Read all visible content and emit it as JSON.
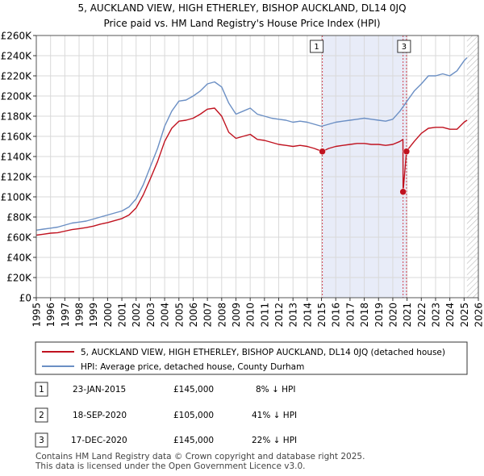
{
  "chart_data": {
    "type": "line",
    "title": "5, AUCKLAND VIEW, HIGH ETHERLEY, BISHOP AUCKLAND, DL14 0JQ",
    "subtitle": "Price paid vs. HM Land Registry's House Price Index (HPI)",
    "xlim": [
      1995,
      2026
    ],
    "ylim": [
      0,
      260000
    ],
    "x_ticks": [
      "1995",
      "1996",
      "1997",
      "1998",
      "1999",
      "2000",
      "2001",
      "2002",
      "2003",
      "2004",
      "2005",
      "2006",
      "2007",
      "2008",
      "2009",
      "2010",
      "2011",
      "2012",
      "2013",
      "2014",
      "2015",
      "2016",
      "2017",
      "2018",
      "2019",
      "2020",
      "2021",
      "2022",
      "2023",
      "2024",
      "2025",
      "2026"
    ],
    "y_ticks": [
      {
        "value": 0,
        "label": "£0"
      },
      {
        "value": 20000,
        "label": "£20K"
      },
      {
        "value": 40000,
        "label": "£40K"
      },
      {
        "value": 60000,
        "label": "£60K"
      },
      {
        "value": 80000,
        "label": "£80K"
      },
      {
        "value": 100000,
        "label": "£100K"
      },
      {
        "value": 120000,
        "label": "£120K"
      },
      {
        "value": 140000,
        "label": "£140K"
      },
      {
        "value": 160000,
        "label": "£160K"
      },
      {
        "value": 180000,
        "label": "£180K"
      },
      {
        "value": 200000,
        "label": "£200K"
      },
      {
        "value": 220000,
        "label": "£220K"
      },
      {
        "value": 240000,
        "label": "£240K"
      },
      {
        "value": 260000,
        "label": "£260K"
      }
    ],
    "grid": true,
    "shaded_period": [
      2015.06,
      2020.96
    ],
    "hatched_from": 2025.2,
    "series": [
      {
        "name": "HPI: Average price, detached house, County Durham",
        "color": "#6b8fc4",
        "x": [
          1995,
          1995.5,
          1996,
          1996.5,
          1997,
          1997.5,
          1998,
          1998.5,
          1999,
          1999.5,
          2000,
          2000.5,
          2001,
          2001.5,
          2002,
          2002.5,
          2003,
          2003.5,
          2004,
          2004.5,
          2005,
          2005.5,
          2006,
          2006.5,
          2007,
          2007.5,
          2008,
          2008.5,
          2009,
          2009.5,
          2010,
          2010.5,
          2011,
          2011.5,
          2012,
          2012.5,
          2013,
          2013.5,
          2014,
          2014.5,
          2015,
          2015.5,
          2016,
          2016.5,
          2017,
          2017.5,
          2018,
          2018.5,
          2019,
          2019.5,
          2020,
          2020.5,
          2021,
          2021.5,
          2022,
          2022.5,
          2023,
          2023.5,
          2024,
          2024.5,
          2025,
          2025.2
        ],
        "values": [
          67000,
          68000,
          69000,
          70000,
          72000,
          74000,
          75000,
          76000,
          78000,
          80000,
          82000,
          84000,
          86000,
          90000,
          98000,
          112000,
          130000,
          148000,
          170000,
          185000,
          195000,
          196000,
          200000,
          205000,
          212000,
          214000,
          209000,
          193000,
          182000,
          185000,
          188000,
          182000,
          180000,
          178000,
          177000,
          176000,
          174000,
          175000,
          174000,
          172000,
          170000,
          172000,
          174000,
          175000,
          176000,
          177000,
          178000,
          177000,
          176000,
          175000,
          177000,
          185000,
          195000,
          205000,
          212000,
          220000,
          220000,
          222000,
          220000,
          225000,
          235000,
          238000
        ]
      },
      {
        "name": "5, AUCKLAND VIEW, HIGH ETHERLEY, BISHOP AUCKLAND, DL14 0JQ (detached house)",
        "color": "#c0121f",
        "x": [
          1995,
          1995.5,
          1996,
          1996.5,
          1997,
          1997.5,
          1998,
          1998.5,
          1999,
          1999.5,
          2000,
          2000.5,
          2001,
          2001.5,
          2002,
          2002.5,
          2003,
          2003.5,
          2004,
          2004.5,
          2005,
          2005.5,
          2006,
          2006.5,
          2007,
          2007.5,
          2008,
          2008.5,
          2009,
          2009.5,
          2010,
          2010.5,
          2011,
          2011.5,
          2012,
          2012.5,
          2013,
          2013.5,
          2014,
          2014.5,
          2015.06,
          2015.5,
          2016,
          2016.5,
          2017,
          2017.5,
          2018,
          2018.5,
          2019,
          2019.5,
          2020,
          2020.5,
          2020.71,
          2020.72,
          2020.96,
          2021,
          2021.5,
          2022,
          2022.5,
          2023,
          2023.5,
          2024,
          2024.5,
          2025,
          2025.2
        ],
        "values": [
          62000,
          63000,
          64000,
          64500,
          66000,
          67500,
          68500,
          69500,
          71000,
          73000,
          74500,
          76500,
          78500,
          82000,
          89000,
          102000,
          118000,
          135000,
          155000,
          168000,
          175000,
          176000,
          178000,
          182000,
          187000,
          188000,
          180000,
          164000,
          158000,
          160000,
          162000,
          157000,
          156000,
          154000,
          152000,
          151000,
          150000,
          151000,
          150000,
          148000,
          145000,
          148000,
          150000,
          151000,
          152000,
          153000,
          153000,
          152000,
          152000,
          151000,
          152000,
          155000,
          157000,
          105000,
          145000,
          146000,
          155000,
          163000,
          168000,
          169000,
          169000,
          167000,
          167000,
          174000,
          176000
        ]
      }
    ],
    "sales": [
      {
        "id": "1",
        "date": "23-JAN-2015",
        "x": 2015.06,
        "price": 145000,
        "price_label": "£145,000",
        "hpi_diff": "8% ↓ HPI"
      },
      {
        "id": "2",
        "date": "18-SEP-2020",
        "x": 2020.72,
        "price": 105000,
        "price_label": "£105,000",
        "hpi_diff": "41% ↓ HPI"
      },
      {
        "id": "3",
        "date": "17-DEC-2020",
        "x": 2020.96,
        "price": 145000,
        "price_label": "£145,000",
        "hpi_diff": "22% ↓ HPI"
      }
    ],
    "marker_labels": [
      "1",
      "3"
    ],
    "legend": {
      "placement": "below-chart",
      "entries": [
        {
          "label": "5, AUCKLAND VIEW, HIGH ETHERLEY, BISHOP AUCKLAND, DL14 0JQ (detached house)",
          "color": "#c0121f"
        },
        {
          "label": "HPI: Average price, detached house, County Durham",
          "color": "#6b8fc4"
        }
      ]
    }
  },
  "footer": {
    "line1": "Contains HM Land Registry data © Crown copyright and database right 2025.",
    "line2": "This data is licensed under the Open Government Licence v3.0."
  }
}
